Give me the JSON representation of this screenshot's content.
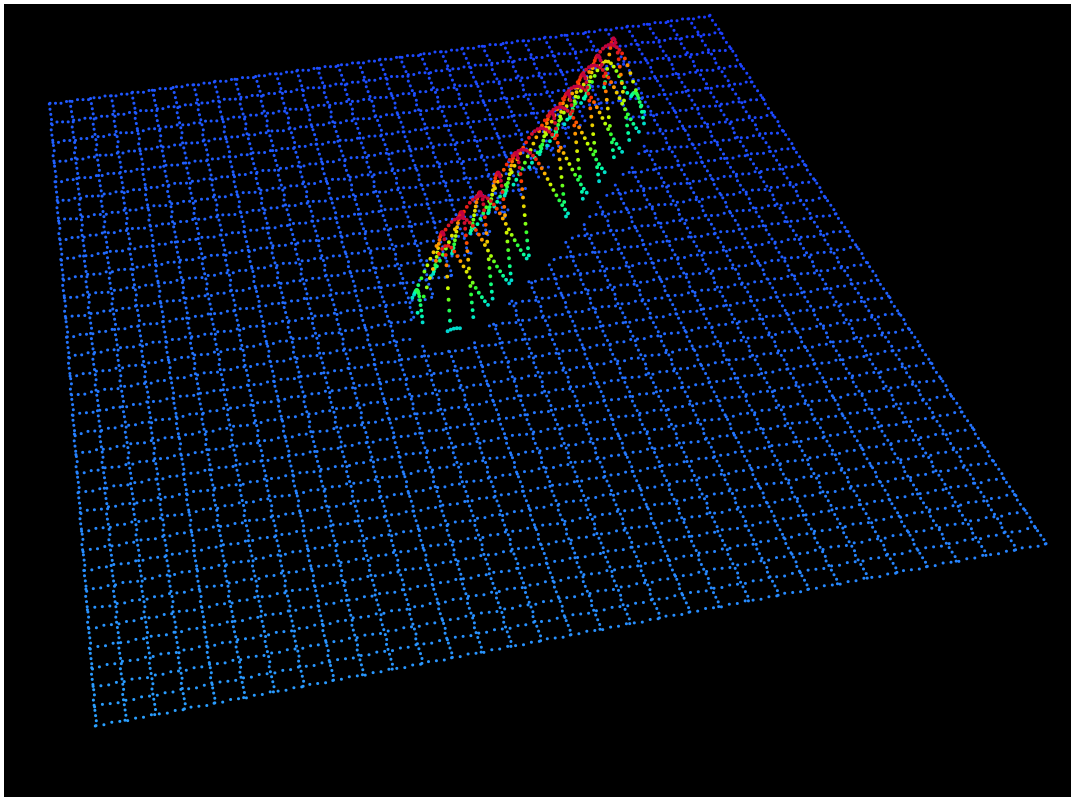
{
  "viewer": {
    "background_color": "#000000",
    "frame_color": "#ffffff"
  },
  "point_cloud": {
    "type": "3d-scatter",
    "ground_plane": {
      "shape": "regular-grid",
      "grid_lines_u": 32,
      "grid_lines_v": 32,
      "color_low": "#1a3cff",
      "color_high": "#2aa0ff"
    },
    "object": {
      "shape": "elongated-ridge",
      "colormap": "jet",
      "colormap_stops": [
        "#0000ff",
        "#00a0ff",
        "#00ffb0",
        "#30ff30",
        "#c8ff00",
        "#ffb000",
        "#ff3000",
        "#c00040"
      ]
    }
  }
}
